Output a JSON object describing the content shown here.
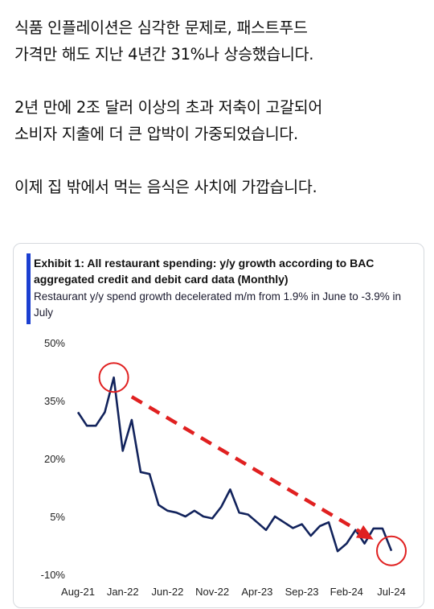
{
  "post": {
    "paragraphs": [
      [
        "식품 인플레이션은 심각한 문제로, 패스트푸드",
        "가격만 해도 지난 4년간 31%나 상승했습니다."
      ],
      [
        "2년 만에 2조 달러 이상의 초과 저축이 고갈되어",
        "소비자 지출에 더 큰 압박이 가중되었습니다."
      ],
      [
        "이제 집 밖에서 먹는 음식은 사치에 가깝습니다."
      ]
    ]
  },
  "exhibit": {
    "title": "Exhibit 1: All restaurant spending: y/y growth according to BAC aggregated credit and debit card data (Monthly)",
    "subtitle": "Restaurant y/y spend growth decelerated m/m from 1.9% in June to -3.9% in July",
    "accent_color": "#1b3fd1"
  },
  "chart_data": {
    "type": "line",
    "title": "Exhibit 1: All restaurant spending: y/y growth according to BAC aggregated credit and debit card data (Monthly)",
    "xlabel": "",
    "ylabel": "",
    "ylim": [
      -10,
      50
    ],
    "yticks": [
      50,
      35,
      20,
      5,
      -10
    ],
    "ytick_labels": [
      "50%",
      "35%",
      "20%",
      "5%",
      "-10%"
    ],
    "xtick_labels": [
      "Aug-21",
      "Jan-22",
      "Jun-22",
      "Nov-22",
      "Apr-23",
      "Sep-23",
      "Feb-24",
      "Jul-24"
    ],
    "grid": false,
    "legend": "none",
    "series_color": "#12235c",
    "series": [
      {
        "x": [
          "Aug-21",
          "Sep-21",
          "Oct-21",
          "Nov-21",
          "Dec-21",
          "Jan-22",
          "Feb-22",
          "Mar-22",
          "Apr-22",
          "May-22",
          "Jun-22",
          "Jul-22",
          "Aug-22",
          "Sep-22",
          "Oct-22",
          "Nov-22",
          "Dec-22",
          "Jan-23",
          "Feb-23",
          "Mar-23",
          "Apr-23",
          "May-23",
          "Jun-23",
          "Jul-23",
          "Aug-23",
          "Sep-23",
          "Oct-23",
          "Nov-23",
          "Dec-23",
          "Jan-24",
          "Feb-24",
          "Mar-24",
          "Apr-24",
          "May-24",
          "Jun-24",
          "Jul-24"
        ],
        "values": [
          32,
          28.5,
          28.5,
          32,
          41,
          22,
          30,
          16.5,
          16,
          8,
          6.5,
          6,
          5,
          6.5,
          5,
          4.5,
          7.5,
          12,
          6,
          5.5,
          3.5,
          1.5,
          5,
          3.5,
          2,
          3,
          0,
          2.5,
          3.5,
          -4,
          -2,
          1.5,
          -2,
          1.9,
          1.9,
          -3.9
        ]
      }
    ],
    "annotations": [
      {
        "type": "circle",
        "x": "Dec-21",
        "y": 41,
        "color": "#e02020"
      },
      {
        "type": "circle",
        "x": "Jul-24",
        "y": -3.9,
        "color": "#e02020"
      },
      {
        "type": "dashed-arrow",
        "from": {
          "x": "Feb-22",
          "y": 36
        },
        "to": {
          "x": "May-24",
          "y": -1
        },
        "color": "#e02020"
      }
    ]
  }
}
